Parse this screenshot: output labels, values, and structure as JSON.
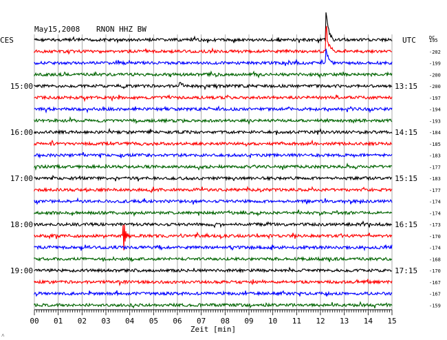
{
  "header": {
    "date": "May15,2008",
    "station": "RNON HHZ BW",
    "left_tz": "CES",
    "right_tz": "UTC",
    "dc_label": "DC"
  },
  "chart_data": {
    "type": "line",
    "title": "May15,2008   RNON HHZ BW",
    "xlabel": "Zeit [min]",
    "ylabel": "",
    "xlim": [
      0,
      15
    ],
    "x_ticks": [
      "00",
      "01",
      "02",
      "03",
      "04",
      "05",
      "06",
      "07",
      "08",
      "09",
      "10",
      "11",
      "12",
      "13",
      "14",
      "15"
    ],
    "left_time_labels": [
      "15:00",
      "16:00",
      "17:00",
      "18:00",
      "19:00"
    ],
    "right_time_labels": [
      "13:15",
      "14:15",
      "15:15",
      "16:15",
      "17:15"
    ],
    "time_label_rows": [
      4,
      8,
      12,
      16,
      20
    ],
    "dc_offsets": [
      195,
      -202,
      -199,
      -200,
      -200,
      -197,
      -194,
      -193,
      -184,
      -185,
      -183,
      -177,
      -183,
      -177,
      -174,
      -174,
      -173,
      -170,
      -174,
      -168,
      -170,
      -167,
      -167,
      -159
    ],
    "trace_colors": [
      "#000000",
      "#ff0000",
      "#0000ff",
      "#006400"
    ],
    "grid": true,
    "events": [
      {
        "row": 0,
        "minute": 12.25,
        "amp": 48
      },
      {
        "row": 1,
        "minute": 12.25,
        "amp": 40
      },
      {
        "row": 2,
        "minute": 12.25,
        "amp": 20
      },
      {
        "row": 4,
        "minute": 6.1,
        "amp": 6
      },
      {
        "row": 17,
        "minute": 3.75,
        "amp": 22
      }
    ]
  },
  "footer": {
    "mark": "˄"
  }
}
